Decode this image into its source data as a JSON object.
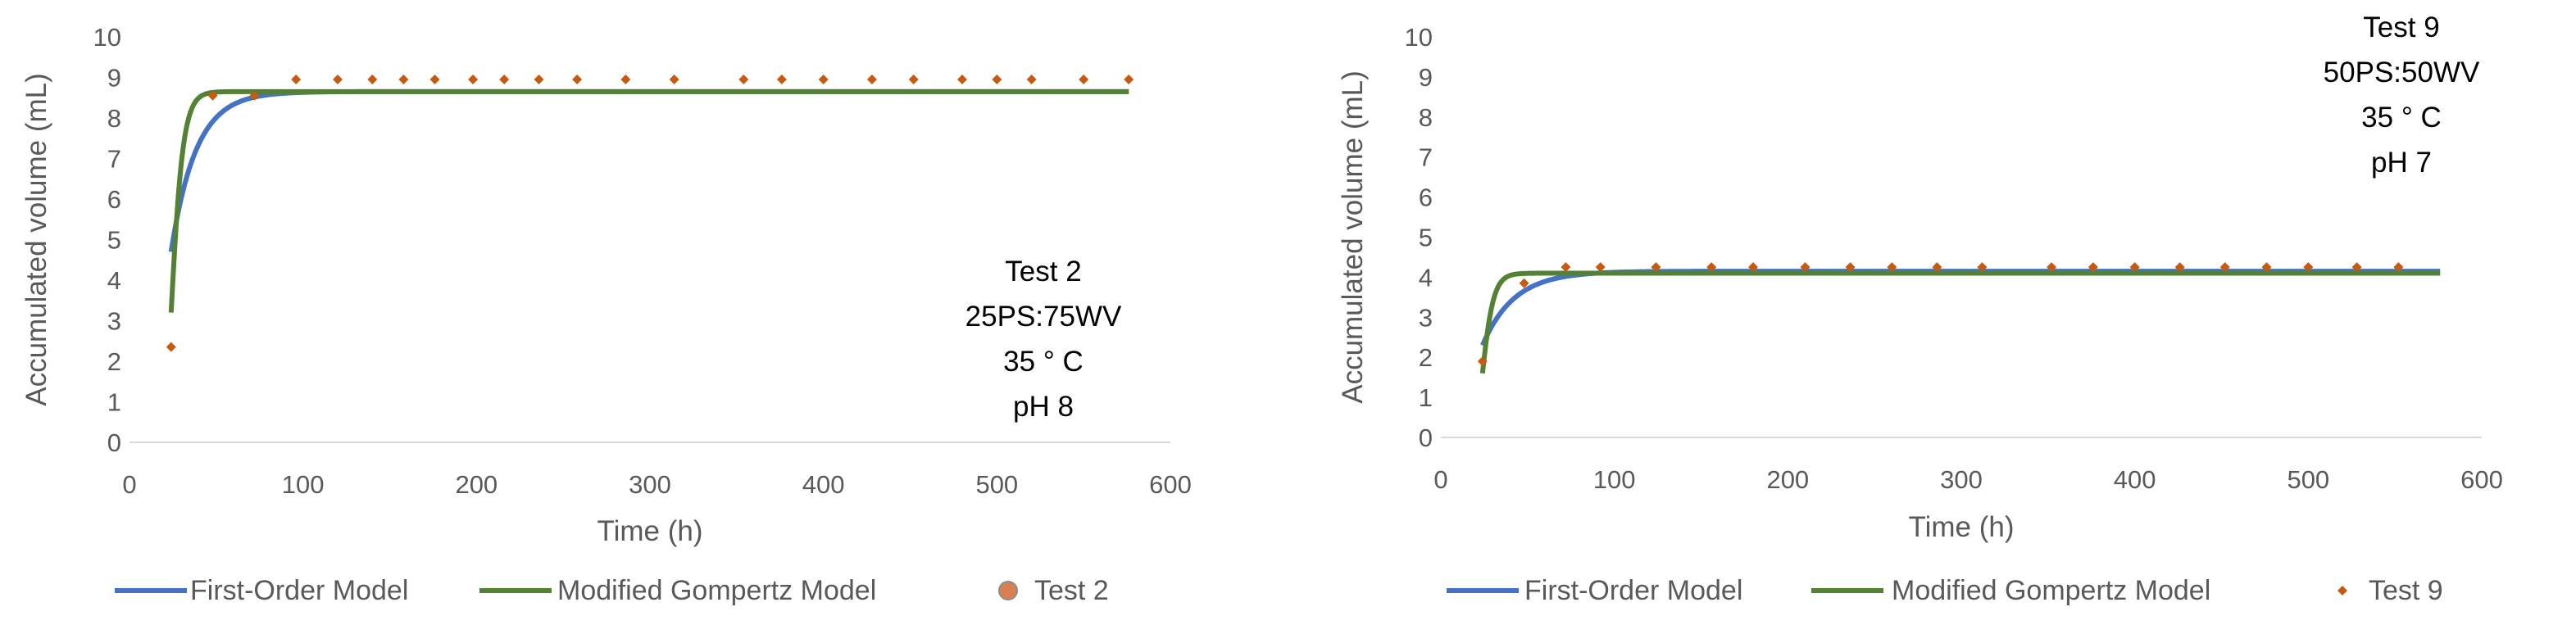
{
  "chart_data": [
    {
      "type": "scatter",
      "title": "",
      "xlabel": "Time (h)",
      "ylabel": "Accumulated volume (mL)",
      "xlim": [
        0,
        600
      ],
      "ylim": [
        0,
        10
      ],
      "xticks": [
        "0",
        "100",
        "200",
        "300",
        "400",
        "500",
        "600"
      ],
      "yticks": [
        "0",
        "1",
        "2",
        "3",
        "4",
        "5",
        "6",
        "7",
        "8",
        "9",
        "10"
      ],
      "grid": false,
      "legend_position": "bottom",
      "annotation": [
        "Test 2",
        "25PS:75WV",
        "35 ° C",
        "pH 8"
      ],
      "series": [
        {
          "name": "First-Order Model",
          "kind": "line",
          "color": "#4472C4",
          "model": "first-order",
          "params": {
            "vmax": 8.65,
            "k": 0.07,
            "x0": 24,
            "v0": 4.7
          },
          "x_range": [
            24,
            576
          ]
        },
        {
          "name": "Modified Gompertz Model",
          "kind": "line",
          "color": "#548235",
          "model": "gompertz",
          "params": {
            "vmax": 8.65,
            "rmax": 0.8,
            "lambda": 20
          },
          "x_range": [
            24,
            576
          ]
        },
        {
          "name": "Test 2",
          "kind": "points",
          "color": "#C55A11",
          "x": [
            24,
            48,
            72,
            96,
            120,
            140,
            158,
            176,
            198,
            216,
            236,
            258,
            286,
            314,
            354,
            376,
            400,
            428,
            452,
            480,
            500,
            520,
            550,
            576
          ],
          "y": [
            2.35,
            8.55,
            8.55,
            8.95,
            8.95,
            8.95,
            8.95,
            8.95,
            8.95,
            8.95,
            8.95,
            8.95,
            8.95,
            8.95,
            8.95,
            8.95,
            8.95,
            8.95,
            8.95,
            8.95,
            8.95,
            8.95,
            8.95,
            8.95
          ]
        }
      ],
      "legend": [
        "First-Order Model",
        "Modified Gompertz Model",
        "Test 2"
      ]
    },
    {
      "type": "scatter",
      "title": "",
      "xlabel": "Time (h)",
      "ylabel": "Accumulated volume (mL)",
      "xlim": [
        0,
        600
      ],
      "ylim": [
        0,
        10
      ],
      "xticks": [
        "0",
        "100",
        "200",
        "300",
        "400",
        "500",
        "600"
      ],
      "yticks": [
        "0",
        "1",
        "2",
        "3",
        "4",
        "5",
        "6",
        "7",
        "8",
        "9",
        "10"
      ],
      "grid": false,
      "legend_position": "bottom",
      "annotation": [
        "Test 9",
        "50PS:50WV",
        "35 ° C",
        "pH 7"
      ],
      "series": [
        {
          "name": "First-Order Model",
          "kind": "line",
          "color": "#4472C4",
          "model": "first-order",
          "params": {
            "vmax": 4.15,
            "k": 0.055,
            "x0": 24,
            "v0": 2.3
          },
          "x_range": [
            24,
            576
          ]
        },
        {
          "name": "Modified Gompertz Model",
          "kind": "line",
          "color": "#548235",
          "model": "gompertz",
          "params": {
            "vmax": 4.1,
            "rmax": 0.4,
            "lambda": 20
          },
          "x_range": [
            24,
            576
          ]
        },
        {
          "name": "Test 9",
          "kind": "points",
          "color": "#C55A11",
          "x": [
            24,
            48,
            72,
            92,
            124,
            156,
            180,
            210,
            236,
            260,
            286,
            312,
            352,
            376,
            400,
            426,
            452,
            476,
            500,
            528,
            552
          ],
          "y": [
            1.9,
            3.85,
            4.25,
            4.25,
            4.25,
            4.25,
            4.25,
            4.25,
            4.25,
            4.25,
            4.25,
            4.25,
            4.25,
            4.25,
            4.25,
            4.25,
            4.25,
            4.25,
            4.25,
            4.25,
            4.25
          ]
        }
      ],
      "legend": [
        "First-Order Model",
        "Modified Gompertz Model",
        "Test 9"
      ]
    }
  ]
}
